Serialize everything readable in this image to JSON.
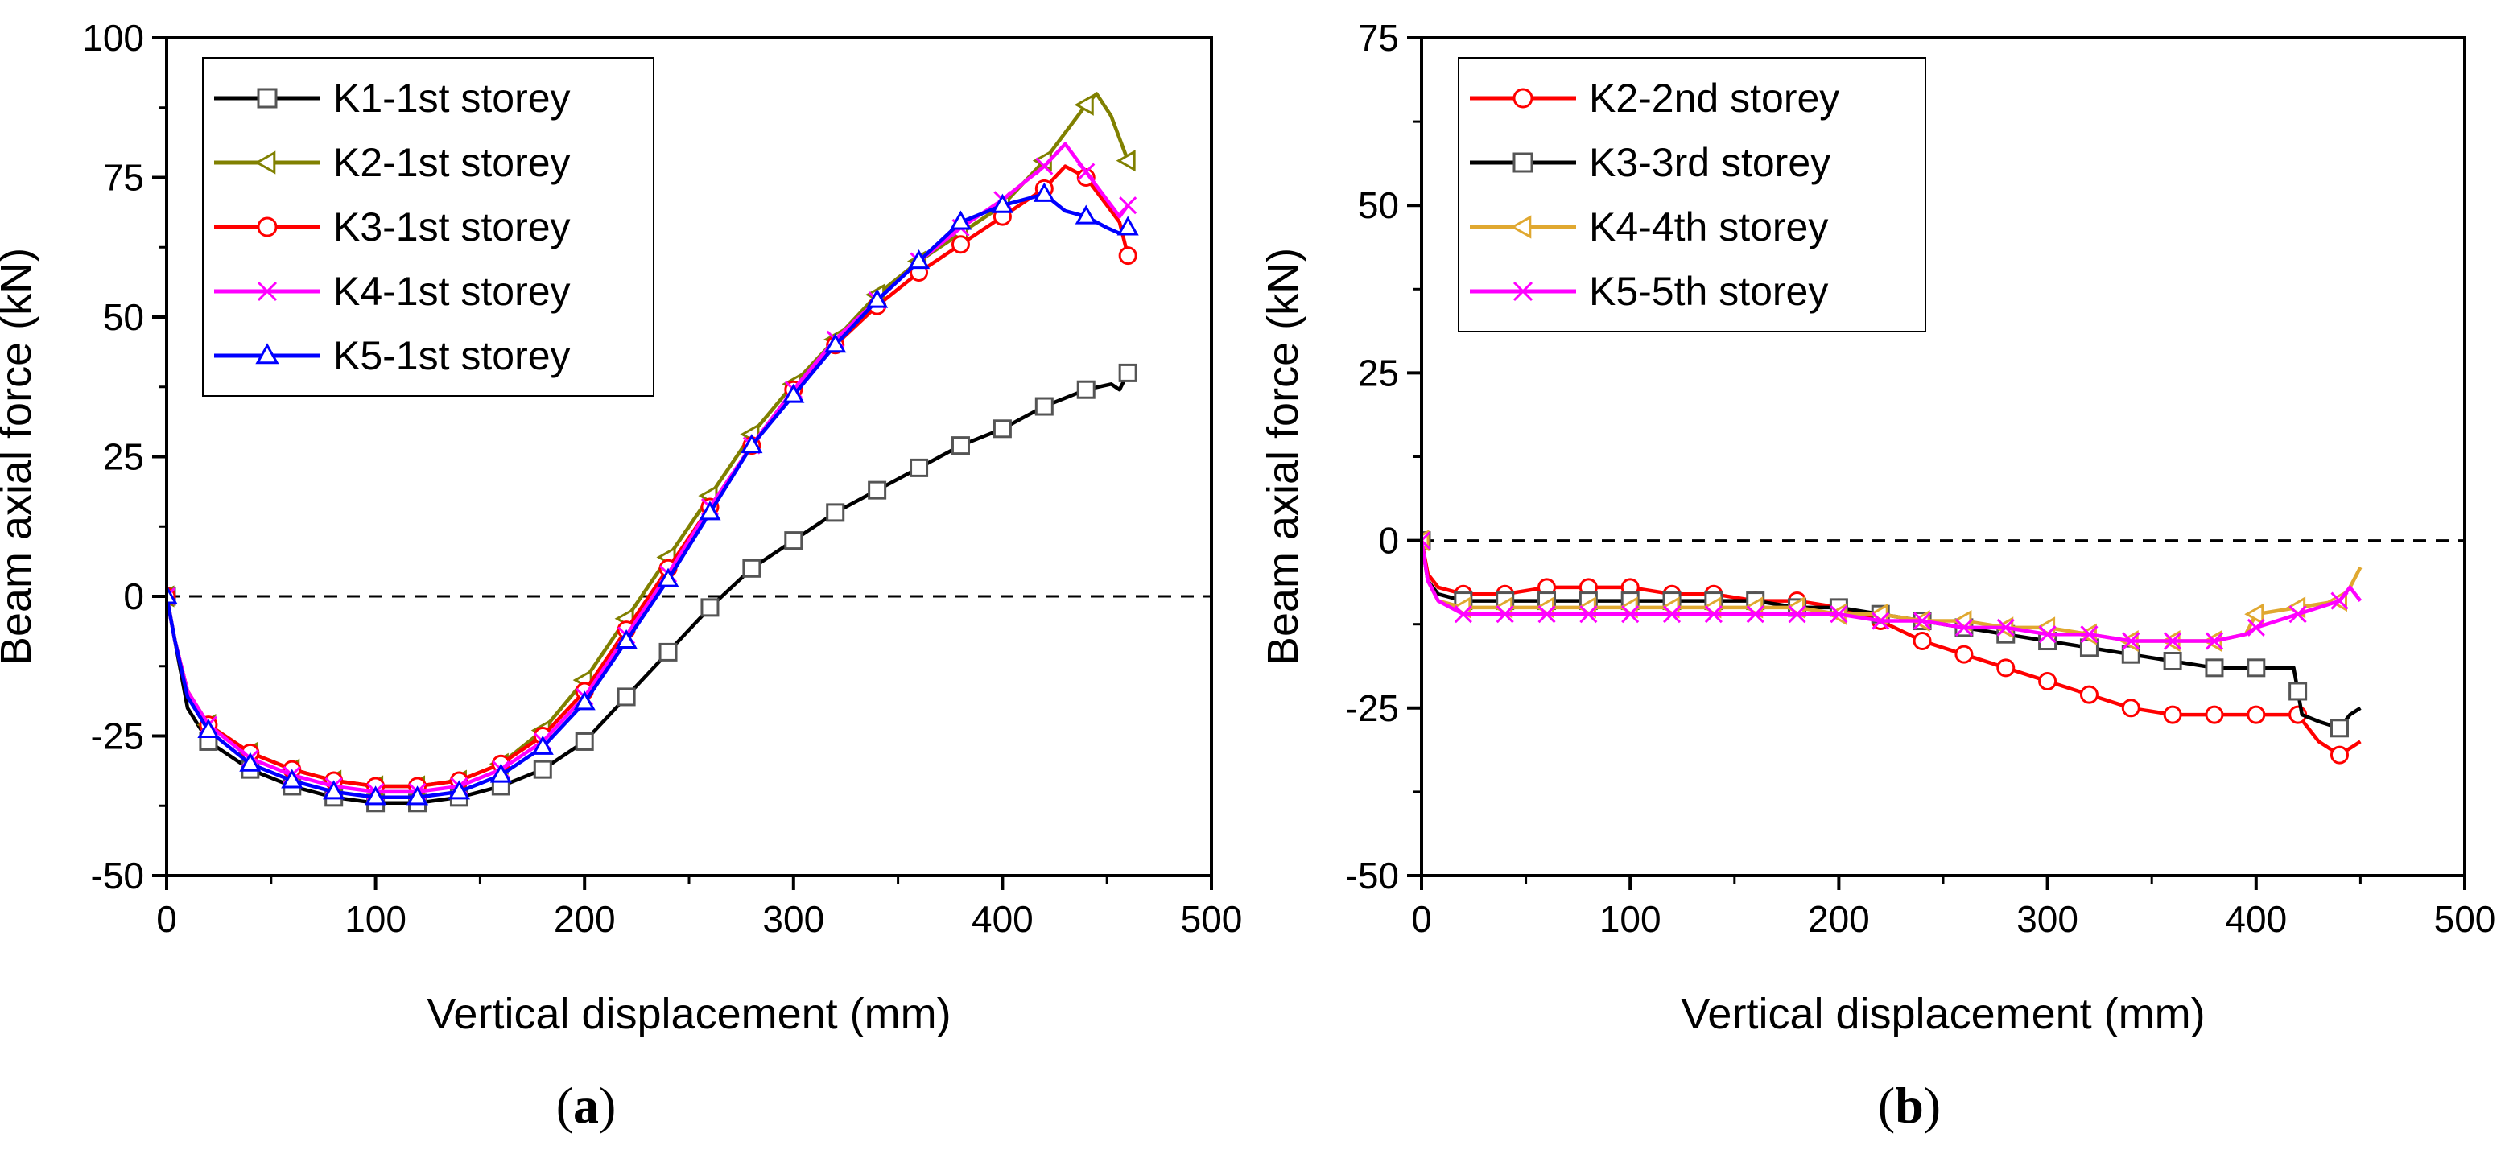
{
  "chart_data": [
    {
      "type": "line",
      "panel_label": "a",
      "xlabel": "Vertical displacement (mm)",
      "ylabel": "Beam axial force (kN)",
      "xlim": [
        0,
        500
      ],
      "ylim": [
        -50,
        100
      ],
      "xticks": [
        "0",
        "100",
        "200",
        "300",
        "400",
        "500"
      ],
      "yticks": [
        "-50",
        "-25",
        "0",
        "25",
        "50",
        "75",
        "100"
      ],
      "xtick_values": [
        0,
        100,
        200,
        300,
        400,
        500
      ],
      "ytick_values": [
        -50,
        -25,
        0,
        25,
        50,
        75,
        100
      ],
      "zero_line": true,
      "legend_position": "top-left",
      "series": [
        {
          "name": "K1-1st storey",
          "color": "#000000",
          "marker": "square",
          "x": [
            0,
            4,
            10,
            20,
            40,
            60,
            80,
            100,
            120,
            140,
            150,
            160,
            180,
            200,
            220,
            240,
            260,
            280,
            300,
            320,
            340,
            360,
            380,
            400,
            420,
            440,
            452,
            456,
            460
          ],
          "y": [
            0,
            -8,
            -20,
            -26,
            -31,
            -34,
            -36,
            -37,
            -37,
            -36,
            -35,
            -34,
            -31,
            -26,
            -18,
            -10,
            -2,
            5,
            10,
            15,
            19,
            23,
            27,
            30,
            34,
            37,
            38,
            37,
            40
          ]
        },
        {
          "name": "K2-1st storey",
          "color": "#808000",
          "marker": "triangle-left",
          "x": [
            0,
            4,
            10,
            20,
            40,
            60,
            80,
            100,
            120,
            140,
            160,
            180,
            200,
            220,
            240,
            260,
            280,
            300,
            320,
            340,
            360,
            380,
            400,
            420,
            440,
            445,
            452,
            456,
            460
          ],
          "y": [
            0,
            -8,
            -17,
            -23,
            -28,
            -31,
            -33,
            -34,
            -34,
            -33,
            -30,
            -24,
            -15,
            -4,
            7,
            18,
            29,
            38,
            46,
            54,
            60,
            65,
            70,
            78,
            88,
            90,
            86,
            82,
            78
          ]
        },
        {
          "name": "K3-1st storey",
          "color": "#ff0000",
          "marker": "circle",
          "x": [
            0,
            4,
            10,
            20,
            40,
            60,
            80,
            100,
            120,
            140,
            160,
            180,
            200,
            220,
            240,
            260,
            280,
            300,
            320,
            340,
            360,
            380,
            400,
            420,
            430,
            440,
            450,
            456,
            460
          ],
          "y": [
            0,
            -8,
            -17,
            -23,
            -28,
            -31,
            -33,
            -34,
            -34,
            -33,
            -30,
            -25,
            -17,
            -6,
            5,
            16,
            27,
            37,
            45,
            52,
            58,
            63,
            68,
            73,
            77,
            75,
            70,
            67,
            61
          ]
        },
        {
          "name": "K4-1st storey",
          "color": "#ff00ff",
          "marker": "x",
          "x": [
            0,
            4,
            10,
            20,
            40,
            60,
            80,
            100,
            120,
            140,
            160,
            180,
            200,
            220,
            240,
            260,
            280,
            300,
            320,
            340,
            360,
            380,
            400,
            420,
            430,
            440,
            450,
            456,
            460
          ],
          "y": [
            0,
            -8,
            -17,
            -23,
            -29,
            -32,
            -34,
            -35,
            -35,
            -34,
            -31,
            -26,
            -18,
            -7,
            4,
            16,
            27,
            37,
            46,
            53,
            60,
            66,
            71,
            77,
            81,
            76,
            71,
            68,
            70
          ]
        },
        {
          "name": "K5-1st storey",
          "color": "#0000ff",
          "marker": "triangle-up",
          "x": [
            0,
            4,
            10,
            20,
            40,
            60,
            80,
            100,
            120,
            140,
            160,
            180,
            200,
            220,
            240,
            260,
            280,
            300,
            320,
            340,
            360,
            380,
            400,
            420,
            430,
            440,
            450,
            456,
            460
          ],
          "y": [
            0,
            -8,
            -18,
            -24,
            -30,
            -33,
            -35,
            -36,
            -36,
            -35,
            -32,
            -27,
            -19,
            -8,
            3,
            15,
            27,
            36,
            45,
            53,
            60,
            67,
            70,
            72,
            69,
            68,
            66,
            65,
            66
          ]
        }
      ]
    },
    {
      "type": "line",
      "panel_label": "b",
      "xlabel": "Vertical displacement (mm)",
      "ylabel": "Beam axial force (kN)",
      "xlim": [
        0,
        500
      ],
      "ylim": [
        -50,
        75
      ],
      "xticks": [
        "0",
        "100",
        "200",
        "300",
        "400",
        "500"
      ],
      "yticks": [
        "-50",
        "-25",
        "0",
        "25",
        "50",
        "75"
      ],
      "xtick_values": [
        0,
        100,
        200,
        300,
        400,
        500
      ],
      "ytick_values": [
        -50,
        -25,
        0,
        25,
        50,
        75
      ],
      "zero_line": true,
      "legend_position": "top-left",
      "series": [
        {
          "name": "K2-2nd storey",
          "color": "#ff0000",
          "marker": "circle",
          "x": [
            0,
            3,
            8,
            20,
            40,
            60,
            80,
            100,
            120,
            140,
            160,
            180,
            200,
            220,
            240,
            260,
            280,
            300,
            320,
            340,
            360,
            380,
            400,
            420,
            430,
            440,
            445,
            450
          ],
          "y": [
            0,
            -5,
            -7,
            -8,
            -8,
            -7,
            -7,
            -7,
            -8,
            -8,
            -9,
            -9,
            -10,
            -12,
            -15,
            -17,
            -19,
            -21,
            -23,
            -25,
            -26,
            -26,
            -26,
            -26,
            -30,
            -32,
            -31,
            -30
          ]
        },
        {
          "name": "K3-3rd storey",
          "color": "#000000",
          "marker": "square",
          "x": [
            0,
            3,
            8,
            20,
            40,
            60,
            80,
            100,
            120,
            140,
            160,
            180,
            200,
            220,
            240,
            260,
            280,
            300,
            320,
            340,
            360,
            380,
            400,
            418,
            422,
            430,
            440,
            445,
            450
          ],
          "y": [
            0,
            -6,
            -8,
            -9,
            -9,
            -9,
            -9,
            -9,
            -9,
            -9,
            -9,
            -10,
            -10,
            -11,
            -12,
            -13,
            -14,
            -15,
            -16,
            -17,
            -18,
            -19,
            -19,
            -19,
            -26,
            -27,
            -28,
            -26,
            -25
          ]
        },
        {
          "name": "K4-4th storey",
          "color": "#e0a830",
          "marker": "triangle-left",
          "x": [
            0,
            3,
            8,
            20,
            40,
            60,
            80,
            100,
            120,
            140,
            160,
            180,
            200,
            220,
            240,
            260,
            280,
            300,
            320,
            340,
            360,
            380,
            395,
            400,
            420,
            440,
            445,
            450
          ],
          "y": [
            0,
            -6,
            -9,
            -10,
            -10,
            -10,
            -10,
            -10,
            -10,
            -10,
            -10,
            -10,
            -11,
            -11,
            -12,
            -12,
            -13,
            -13,
            -14,
            -15,
            -15,
            -15,
            -14,
            -11,
            -10,
            -9,
            -7,
            -4
          ]
        },
        {
          "name": "K5-5th storey",
          "color": "#ff00ff",
          "marker": "x",
          "x": [
            0,
            3,
            8,
            20,
            40,
            60,
            80,
            100,
            120,
            140,
            160,
            180,
            200,
            220,
            240,
            260,
            280,
            300,
            320,
            340,
            360,
            380,
            395,
            400,
            420,
            440,
            445,
            450
          ],
          "y": [
            0,
            -6,
            -9,
            -11,
            -11,
            -11,
            -11,
            -11,
            -11,
            -11,
            -11,
            -11,
            -11,
            -12,
            -12,
            -13,
            -13,
            -14,
            -14,
            -15,
            -15,
            -15,
            -14,
            -13,
            -11,
            -9,
            -7,
            -9
          ]
        }
      ]
    }
  ]
}
